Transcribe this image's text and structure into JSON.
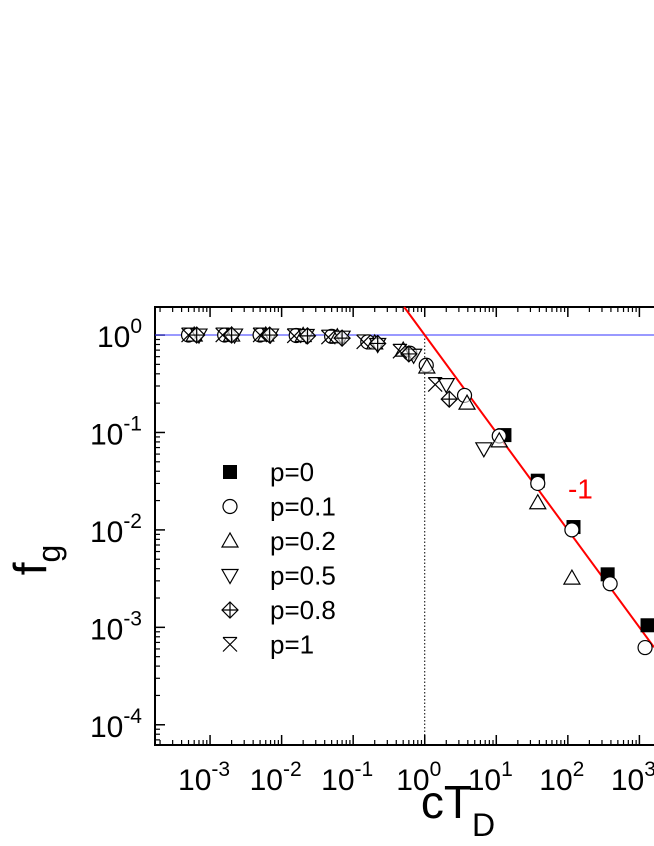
{
  "chart_data": {
    "type": "scatter",
    "x_label": {
      "text": "cT",
      "subscript": "D"
    },
    "y_label": {
      "text": "f",
      "subscript": "g"
    },
    "log_x": true,
    "log_y": true,
    "xlim": [
      0.00017,
      1600
    ],
    "ylim": [
      6.2e-05,
      1.94
    ],
    "xticks": [
      {
        "value": 0.001,
        "label": "10",
        "exponent": "-3"
      },
      {
        "value": 0.01,
        "label": "10",
        "exponent": "-2"
      },
      {
        "value": 0.1,
        "label": "10",
        "exponent": "-1"
      },
      {
        "value": 1,
        "label": "10",
        "exponent": "0"
      },
      {
        "value": 10,
        "label": "10",
        "exponent": "1"
      },
      {
        "value": 100,
        "label": "10",
        "exponent": "2"
      },
      {
        "value": 1000,
        "label": "10",
        "exponent": "3"
      }
    ],
    "yticks": [
      {
        "value": 0.0001,
        "label": "10",
        "exponent": "-4"
      },
      {
        "value": 0.001,
        "label": "10",
        "exponent": "-3"
      },
      {
        "value": 0.01,
        "label": "10",
        "exponent": "-2"
      },
      {
        "value": 0.1,
        "label": "10",
        "exponent": "-1"
      },
      {
        "value": 1,
        "label": "10",
        "exponent": "0"
      }
    ],
    "series": [
      {
        "name": "p=0",
        "marker": "square-filled",
        "color": "#000000",
        "x": [
          13,
          38,
          120,
          360,
          1300
        ],
        "values": [
          0.094,
          0.032,
          0.0107,
          0.0035,
          0.00105
        ]
      },
      {
        "name": "p=0.1",
        "marker": "circle",
        "color": "#000000",
        "x": [
          0.0005,
          0.0016,
          0.005,
          0.016,
          0.05,
          0.16,
          0.62,
          1.05,
          3.6,
          11,
          38,
          114,
          390,
          1200
        ],
        "values": [
          1.0,
          1.0,
          1.0,
          0.99,
          0.97,
          0.85,
          0.65,
          0.49,
          0.24,
          0.092,
          0.03,
          0.01,
          0.0028,
          0.00062
        ]
      },
      {
        "name": "p=0.2",
        "marker": "triangle-up",
        "color": "#000000",
        "x": [
          0.0006,
          0.002,
          0.006,
          0.02,
          0.06,
          0.2,
          0.5,
          1.07,
          3.9,
          11,
          38,
          114
        ],
        "values": [
          1.0,
          1.0,
          1.0,
          0.99,
          0.96,
          0.83,
          0.7,
          0.47,
          0.2,
          0.082,
          0.019,
          0.0032
        ]
      },
      {
        "name": "p=0.5",
        "marker": "triangle-down",
        "color": "#000000",
        "x": [
          0.0007,
          0.0022,
          0.007,
          0.022,
          0.07,
          0.22,
          0.7,
          2.0,
          6.7
        ],
        "values": [
          1.0,
          1.0,
          1.0,
          0.99,
          0.95,
          0.8,
          0.62,
          0.31,
          0.068
        ]
      },
      {
        "name": "p=0.8",
        "marker": "diamond-plus",
        "color": "#000000",
        "x": [
          0.00065,
          0.002,
          0.0068,
          0.023,
          0.07,
          0.22,
          0.6,
          2.2
        ],
        "values": [
          1.0,
          1.0,
          1.0,
          0.98,
          0.93,
          0.82,
          0.64,
          0.22
        ]
      },
      {
        "name": "p=1",
        "marker": "x-cross",
        "color": "#000000",
        "x": [
          0.0005,
          0.0015,
          0.005,
          0.015,
          0.045,
          0.14,
          0.45,
          1.4
        ],
        "values": [
          1.0,
          1.0,
          1.0,
          0.98,
          0.95,
          0.85,
          0.68,
          0.31
        ]
      }
    ],
    "reference_lines": [
      {
        "orientation": "horizontal",
        "value": 1,
        "color": "#3333ff",
        "style": "solid"
      },
      {
        "orientation": "vertical",
        "value": 1,
        "color": "#000000",
        "style": "dotted"
      }
    ],
    "fit_line": {
      "slope": -1,
      "intercept": 1,
      "color": "#ff0000",
      "label": "-1",
      "label_x": 150,
      "label_y": 0.021
    }
  }
}
